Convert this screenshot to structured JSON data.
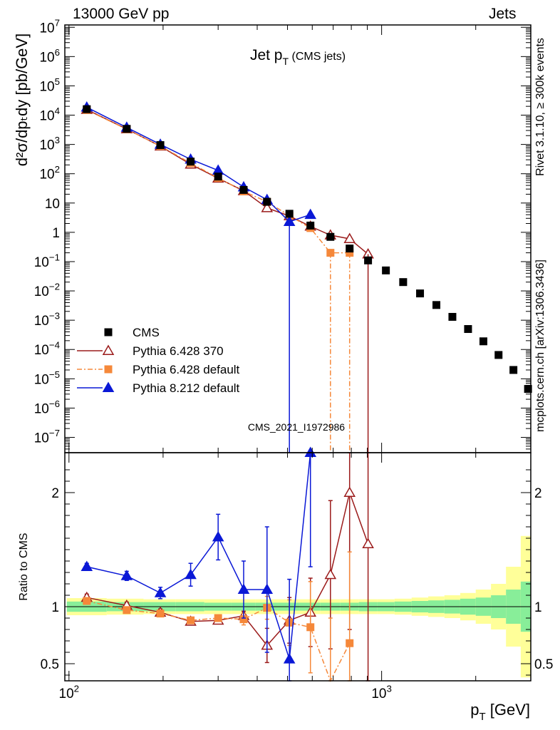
{
  "header": {
    "left": "13000 GeV pp",
    "right": "Jets"
  },
  "side_labels": {
    "top": "Rivet 3.1.10, ≥ 300k events",
    "bottom": "mcplots.cern.ch [arXiv:1306.3436]"
  },
  "chart_data": {
    "type": "scatter",
    "title": "Jet p",
    "title_sub": "T",
    "title_suffix": "(CMS jets)",
    "watermark": "CMS_2021_I1972986",
    "xlabel": "p",
    "xlabel_sub": "T",
    "xlabel_unit": "[GeV]",
    "ylabel": "d²σ/dpₜdy [pb/GeV]",
    "ratio_ylabel": "Ratio to CMS",
    "xscale": "log",
    "xlim": [
      97,
      3000
    ],
    "ylim_main": [
      3e-08,
      12000000.0
    ],
    "ylim_ratio": [
      0.35,
      2.35
    ],
    "x_ticks": [
      {
        "v": 100,
        "b": "10",
        "e": "2"
      },
      {
        "v": 1000,
        "b": "10",
        "e": "3"
      }
    ],
    "y_ticks_main": [
      {
        "v": 10000000.0,
        "b": "10",
        "e": "7"
      },
      {
        "v": 1000000.0,
        "b": "10",
        "e": "6"
      },
      {
        "v": 100000.0,
        "b": "10",
        "e": "5"
      },
      {
        "v": 10000.0,
        "b": "10",
        "e": "4"
      },
      {
        "v": 1000.0,
        "b": "10",
        "e": "3"
      },
      {
        "v": 100.0,
        "b": "10",
        "e": "2"
      },
      {
        "v": 10,
        "b": "10",
        "e": ""
      },
      {
        "v": 1,
        "b": "1",
        "e": ""
      },
      {
        "v": 0.1,
        "b": "10",
        "e": "−1"
      },
      {
        "v": 0.01,
        "b": "10",
        "e": "−2"
      },
      {
        "v": 0.001,
        "b": "10",
        "e": "−3"
      },
      {
        "v": 0.0001,
        "b": "10",
        "e": "−4"
      },
      {
        "v": 1e-05,
        "b": "10",
        "e": "−5"
      },
      {
        "v": 1e-06,
        "b": "10",
        "e": "−6"
      },
      {
        "v": 1e-07,
        "b": "10",
        "e": "−7"
      }
    ],
    "y_ticks_ratio": [
      {
        "v": 2,
        "label": "2"
      },
      {
        "v": 1,
        "label": "1"
      },
      {
        "v": 0.5,
        "label": "0.5"
      }
    ],
    "legend": [
      {
        "name": "CMS",
        "color": "#000000",
        "marker": "square",
        "line": "none"
      },
      {
        "name": "Pythia 6.428 370",
        "color": "#9b1b1b",
        "marker": "triangle-open",
        "line": "solid"
      },
      {
        "name": "Pythia 6.428 default",
        "color": "#f5883a",
        "marker": "square",
        "line": "dashdot"
      },
      {
        "name": "Pythia 8.212 default",
        "color": "#0a18d6",
        "marker": "triangle",
        "line": "solid"
      }
    ],
    "data": {
      "x": [
        114,
        153,
        196,
        245,
        300,
        362,
        430,
        507,
        592,
        686,
        790,
        905,
        1032,
        1172,
        1327,
        1497,
        1684,
        1890,
        2116,
        2366,
        2640,
        2940
      ],
      "y": [
        16000,
        3400,
        950,
        260,
        80,
        28,
        11,
        4.3,
        1.7,
        0.7,
        0.28,
        0.11,
        0.05,
        0.02,
        0.0082,
        0.0033,
        0.0013,
        0.0005,
        0.00019,
        6.5e-05,
        2e-05,
        4.5e-06
      ],
      "band_inner": [
        0.045,
        0.04,
        0.04,
        0.04,
        0.035,
        0.035,
        0.035,
        0.035,
        0.035,
        0.035,
        0.035,
        0.04,
        0.04,
        0.045,
        0.05,
        0.055,
        0.06,
        0.07,
        0.08,
        0.1,
        0.15,
        0.22
      ],
      "band_outer": [
        0.075,
        0.07,
        0.065,
        0.065,
        0.065,
        0.065,
        0.065,
        0.065,
        0.065,
        0.065,
        0.065,
        0.065,
        0.065,
        0.07,
        0.08,
        0.09,
        0.1,
        0.12,
        0.15,
        0.2,
        0.35,
        0.62
      ]
    },
    "series": [
      {
        "name": "Pythia 6.428 370",
        "x": [
          114,
          153,
          196,
          245,
          300,
          362,
          430,
          507,
          592,
          686,
          790,
          905
        ],
        "y": [
          15500,
          3350,
          870,
          210,
          70,
          26,
          6.8,
          3.6,
          1.6,
          0.8,
          0.6,
          0.18
        ],
        "ratio": [
          1.08,
          1.01,
          0.95,
          0.87,
          0.88,
          0.92,
          0.66,
          0.88,
          0.95,
          1.28,
          2.0,
          1.55
        ],
        "ratio_err": [
          0.03,
          0.03,
          0.03,
          0.03,
          0.03,
          0.04,
          0.15,
          0.2,
          0.3,
          0.65,
          1.2,
          1.6
        ]
      },
      {
        "name": "Pythia 6.428 default",
        "x": [
          114,
          153,
          196,
          245,
          300,
          362,
          430,
          507,
          592,
          686,
          790
        ],
        "y": [
          15000,
          3300,
          880,
          230,
          72,
          25,
          11,
          3.7,
          1.4,
          0.2,
          0.2
        ],
        "ratio": [
          1.05,
          0.97,
          0.94,
          0.88,
          0.9,
          0.89,
          0.99,
          0.86,
          0.82,
          0.3,
          0.68
        ],
        "ratio_err": [
          0.02,
          0.02,
          0.02,
          0.02,
          0.02,
          0.05,
          0.1,
          0.2,
          0.4,
          0.6,
          0.8
        ]
      },
      {
        "name": "Pythia 8.212 default",
        "x": [
          114,
          153,
          196,
          245,
          300,
          362,
          430,
          507,
          592
        ],
        "y": [
          18500,
          3800,
          1000,
          310,
          130,
          35,
          13,
          2.3,
          4.0
        ],
        "ratio": [
          1.35,
          1.27,
          1.12,
          1.28,
          1.61,
          1.15,
          1.15,
          0.54,
          2.35
        ],
        "ratio_err": [
          0.03,
          0.04,
          0.05,
          0.1,
          0.2,
          0.25,
          0.55,
          0.7,
          1.0
        ]
      }
    ]
  }
}
